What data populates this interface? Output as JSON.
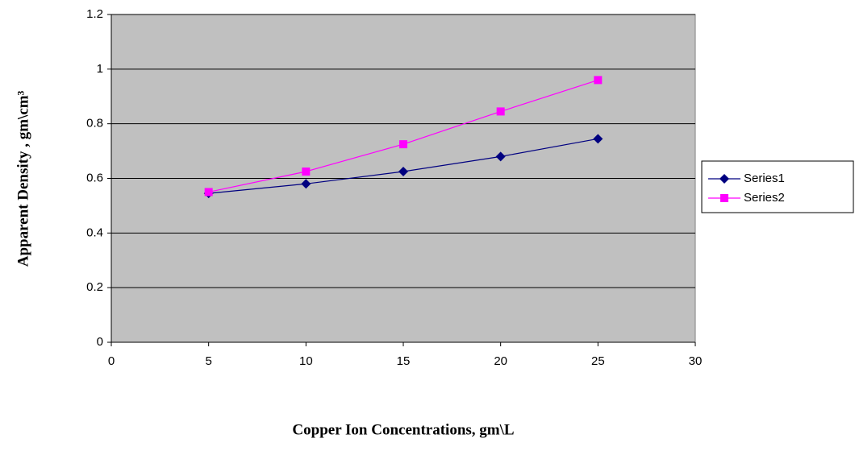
{
  "chart_data": {
    "type": "line",
    "x_label": "Copper  Ion Concentrations, gm\\L",
    "y_label": "Apparent Density , gm\\cm³",
    "x": [
      5,
      10,
      15,
      20,
      25
    ],
    "series": [
      {
        "name": "Series1",
        "color": "#000080",
        "marker": "diamond",
        "values": [
          0.545,
          0.58,
          0.625,
          0.68,
          0.745
        ]
      },
      {
        "name": "Series2",
        "color": "#ff00ff",
        "marker": "square",
        "values": [
          0.55,
          0.625,
          0.725,
          0.845,
          0.96
        ]
      }
    ],
    "xlim": [
      0,
      30
    ],
    "xticks": [
      0,
      5,
      10,
      15,
      20,
      25,
      30
    ],
    "ylim": [
      0,
      1.2
    ],
    "yticks": [
      0,
      0.2,
      0.4,
      0.6,
      0.8,
      1,
      1.2
    ],
    "grid": true,
    "legend": "right"
  }
}
